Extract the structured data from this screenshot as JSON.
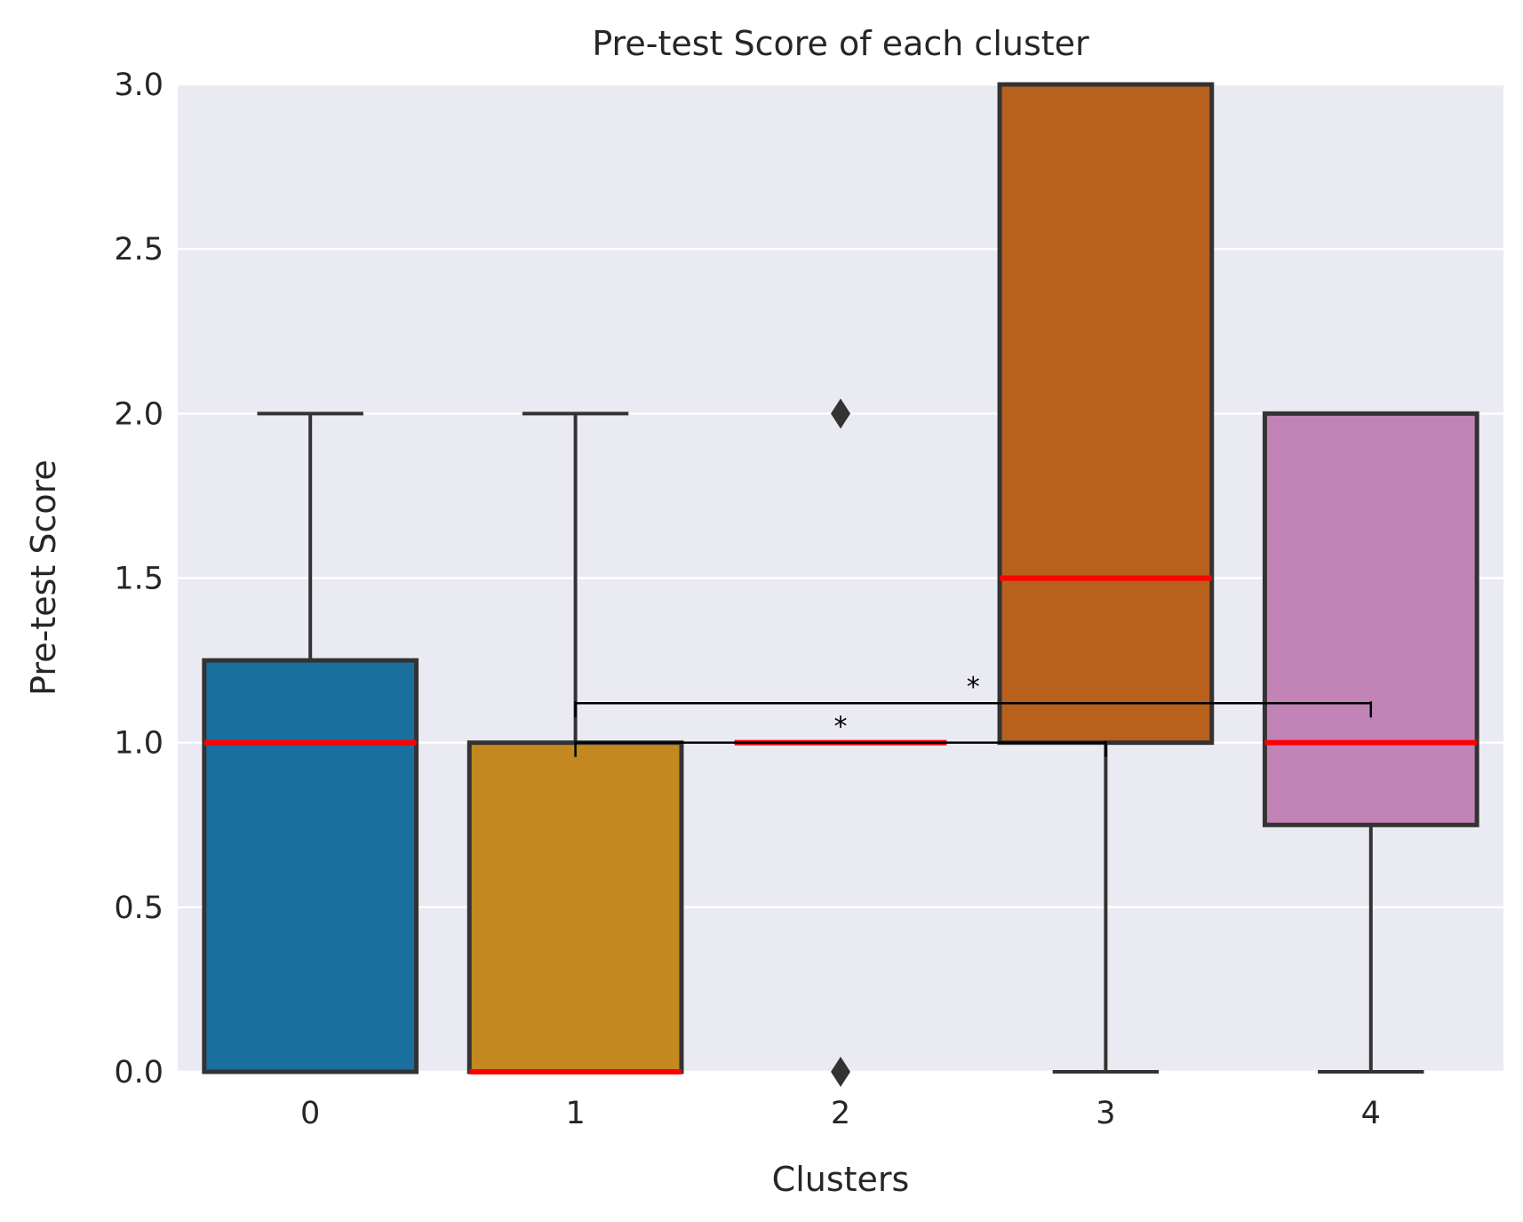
{
  "chart_data": {
    "type": "box",
    "title": "Pre-test Score of each cluster",
    "xlabel": "Clusters",
    "ylabel": "Pre-test Score",
    "ylim": [
      0,
      3.0
    ],
    "yticks": [
      "0.0",
      "0.5",
      "1.0",
      "1.5",
      "2.0",
      "2.5",
      "3.0"
    ],
    "categories": [
      "0",
      "1",
      "2",
      "3",
      "4"
    ],
    "grid": true,
    "boxes": [
      {
        "category": "0",
        "q1": 0.0,
        "median": 1.0,
        "q3": 1.25,
        "whisker_low": 0.0,
        "whisker_high": 2.0,
        "outliers": [],
        "color": "#1a6f9f"
      },
      {
        "category": "1",
        "q1": 0.0,
        "median": 0.0,
        "q3": 1.0,
        "whisker_low": 0.0,
        "whisker_high": 2.0,
        "outliers": [],
        "color": "#c38820"
      },
      {
        "category": "2",
        "q1": 1.0,
        "median": 1.0,
        "q3": 1.0,
        "whisker_low": 1.0,
        "whisker_high": 1.0,
        "outliers": [
          0.0,
          2.0
        ],
        "color": "#1e9e77"
      },
      {
        "category": "3",
        "q1": 1.0,
        "median": 1.5,
        "q3": 3.0,
        "whisker_low": 0.0,
        "whisker_high": 3.0,
        "outliers": [],
        "color": "#b8611d"
      },
      {
        "category": "4",
        "q1": 0.75,
        "median": 1.0,
        "q3": 2.0,
        "whisker_low": 0.0,
        "whisker_high": 2.0,
        "outliers": [],
        "color": "#c283b7"
      }
    ],
    "median_color": "#ff0000",
    "significance": [
      {
        "from": "1",
        "to": "3",
        "y": 1.0,
        "label": "*"
      },
      {
        "from": "1",
        "to": "4",
        "y": 1.12,
        "label": "*"
      }
    ]
  }
}
